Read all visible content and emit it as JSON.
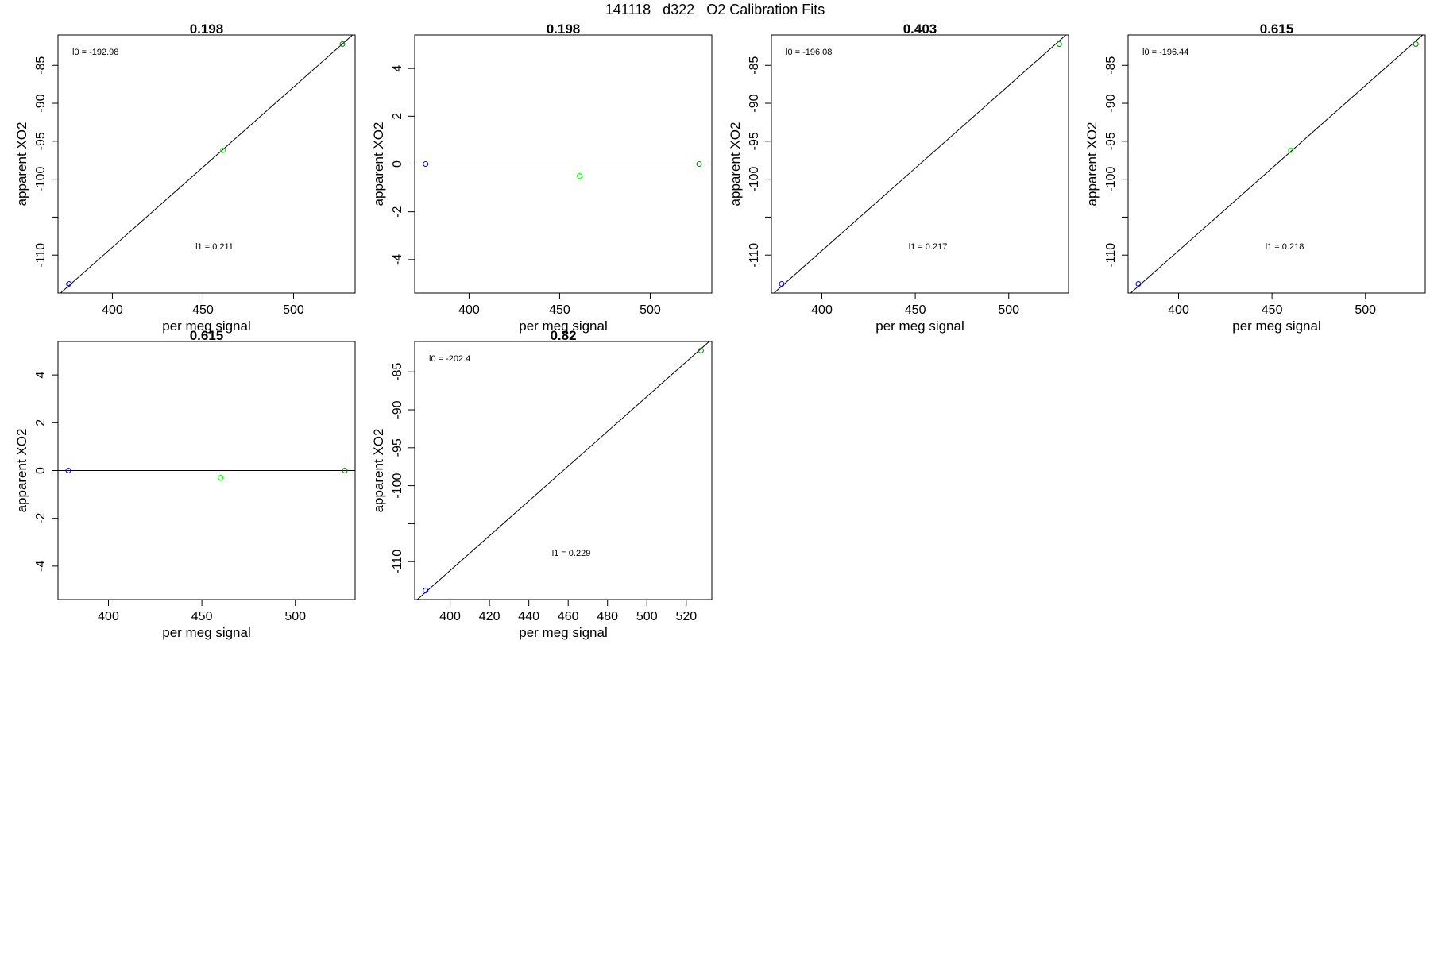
{
  "figure_title": "141118   d322   O2 Calibration Fits",
  "chart_data": [
    {
      "type": "scatter",
      "title": "0.198",
      "xlabel": "per meg signal",
      "ylabel": "apparent XO2",
      "xlim": [
        370,
        534
      ],
      "ylim": [
        -115,
        -81
      ],
      "xticks": [
        400,
        450,
        500
      ],
      "yticks": [
        -85,
        -90,
        -95,
        -100,
        -110
      ],
      "yminor": [
        -105
      ],
      "points": [
        {
          "x": 376,
          "y": -113.8,
          "color": "#0000ff"
        },
        {
          "x": 461,
          "y": -96.2,
          "color": "#00ff00"
        },
        {
          "x": 527,
          "y": -82.2,
          "color": "#008000"
        }
      ],
      "fit_line": [
        [
          370,
          -115.3
        ],
        [
          534,
          -80.7
        ]
      ],
      "fit_text": {
        "l0": "l0 =  -192.98",
        "l1": "l1 =  0.211"
      }
    },
    {
      "type": "scatter",
      "title": "0.198",
      "xlabel": "per meg signal",
      "ylabel": "apparent XO2",
      "xlim": [
        370,
        534
      ],
      "ylim": [
        -5.4,
        5.4
      ],
      "xticks": [
        400,
        450,
        500
      ],
      "yticks": [
        4,
        2,
        0,
        -2,
        -4
      ],
      "yminor": [],
      "points": [
        {
          "x": 376,
          "y": 0,
          "color": "#0000ff"
        },
        {
          "x": 461,
          "y": -0.5,
          "color": "#00ff00"
        },
        {
          "x": 527,
          "y": 0,
          "color": "#008000"
        }
      ],
      "fit_line": [
        [
          370,
          0
        ],
        [
          534,
          0
        ]
      ],
      "fit_text": {
        "l0": "",
        "l1": ""
      }
    },
    {
      "type": "scatter",
      "title": "0.403",
      "xlabel": "per meg signal",
      "ylabel": "apparent XO2",
      "xlim": [
        373,
        532
      ],
      "ylim": [
        -115,
        -81
      ],
      "xticks": [
        400,
        450,
        500
      ],
      "yticks": [
        -85,
        -90,
        -95,
        -100,
        -110
      ],
      "yminor": [
        -105
      ],
      "points": [
        {
          "x": 378.5,
          "y": -113.8,
          "color": "#0000ff"
        },
        {
          "x": 527,
          "y": -82.2,
          "color": "#008000"
        }
      ],
      "fit_line": [
        [
          373,
          -115.3
        ],
        [
          532,
          -80.7
        ]
      ],
      "fit_text": {
        "l0": "l0 =  -196.08",
        "l1": "l1 =  0.217"
      }
    },
    {
      "type": "scatter",
      "title": "0.615",
      "xlabel": "per meg signal",
      "ylabel": "apparent XO2",
      "xlim": [
        373,
        532
      ],
      "ylim": [
        -115,
        -81
      ],
      "xticks": [
        400,
        450,
        500
      ],
      "yticks": [
        -85,
        -90,
        -95,
        -100,
        -110
      ],
      "yminor": [
        -105
      ],
      "points": [
        {
          "x": 378.5,
          "y": -113.8,
          "color": "#0000ff"
        },
        {
          "x": 460,
          "y": -96.2,
          "color": "#00ff00"
        },
        {
          "x": 527,
          "y": -82.2,
          "color": "#008000"
        }
      ],
      "fit_line": [
        [
          373,
          -115.3
        ],
        [
          532,
          -80.7
        ]
      ],
      "fit_text": {
        "l0": "l0 =  -196.44",
        "l1": "l1 =  0.218"
      }
    },
    {
      "type": "scatter",
      "title": "0.615",
      "xlabel": "per meg signal",
      "ylabel": "apparent XO2",
      "xlim": [
        373,
        532
      ],
      "ylim": [
        -5.4,
        5.4
      ],
      "xticks": [
        400,
        450,
        500
      ],
      "yticks": [
        4,
        2,
        0,
        -2,
        -4
      ],
      "yminor": [],
      "points": [
        {
          "x": 378.5,
          "y": 0,
          "color": "#0000ff"
        },
        {
          "x": 460,
          "y": -0.3,
          "color": "#00ff00"
        },
        {
          "x": 526.5,
          "y": 0,
          "color": "#008000"
        }
      ],
      "fit_line": [
        [
          373,
          0
        ],
        [
          532,
          0
        ]
      ],
      "fit_text": {
        "l0": "",
        "l1": ""
      }
    },
    {
      "type": "scatter",
      "title": "0.82",
      "xlabel": "per meg signal",
      "ylabel": "apparent XO2",
      "xlim": [
        382,
        533
      ],
      "ylim": [
        -115,
        -81
      ],
      "xticks": [
        400,
        420,
        440,
        460,
        480,
        500,
        520
      ],
      "yticks": [
        -85,
        -90,
        -95,
        -100,
        -110
      ],
      "yminor": [
        -105
      ],
      "points": [
        {
          "x": 387.5,
          "y": -113.8,
          "color": "#0000ff"
        },
        {
          "x": 527.5,
          "y": -82.2,
          "color": "#008000"
        }
      ],
      "fit_line": [
        [
          382,
          -115.3
        ],
        [
          533,
          -80.7
        ]
      ],
      "fit_text": {
        "l0": "l0 =  -202.4",
        "l1": "l1 =  0.229"
      }
    }
  ]
}
